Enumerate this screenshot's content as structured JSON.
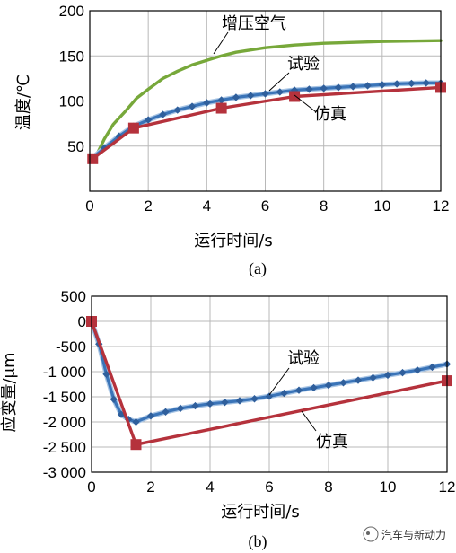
{
  "charts": [
    {
      "type": "line",
      "panel_label": "(a)",
      "xlabel": "运行时间/s",
      "ylabel": "温度/℃",
      "xlim": [
        0,
        12
      ],
      "ylim": [
        0,
        200
      ],
      "xticks": [
        0,
        2,
        4,
        6,
        8,
        10,
        12
      ],
      "xtick_labels": [
        "0",
        "2",
        "4",
        "6",
        "8",
        "10",
        "12"
      ],
      "yticks": [
        50,
        100,
        150,
        200
      ],
      "ytick_labels": [
        "50",
        "100",
        "150",
        "200"
      ],
      "grid": true,
      "annotations": [
        "增压空气",
        "试验",
        "仿真"
      ],
      "series": [
        {
          "name": "增压空气",
          "color": "#77a83a",
          "marker": "none",
          "x": [
            0.2,
            0.5,
            0.8,
            1.2,
            1.6,
            2.0,
            2.5,
            3.0,
            3.5,
            4.0,
            4.5,
            5.0,
            6.0,
            7.0,
            8.0,
            9.0,
            10.0,
            11.0,
            12.0
          ],
          "y": [
            38,
            58,
            74,
            88,
            103,
            113,
            125,
            133,
            140,
            145,
            150,
            154,
            159,
            162,
            164,
            165,
            166,
            166.5,
            167
          ]
        },
        {
          "name": "试验",
          "color": "#3a74b8",
          "marker": "diamond",
          "x": [
            0.1,
            0.5,
            1.0,
            1.5,
            2.0,
            2.5,
            3.0,
            3.5,
            4.0,
            4.5,
            5.0,
            5.5,
            6.0,
            6.5,
            7.0,
            7.5,
            8.0,
            8.5,
            9.0,
            9.5,
            10.0,
            10.5,
            11.0,
            11.5,
            12.0
          ],
          "y": [
            37,
            48,
            61,
            72,
            79,
            85,
            90,
            94,
            98,
            101,
            104,
            106,
            108,
            110,
            112,
            113,
            114,
            115,
            116,
            117,
            118,
            119,
            119.5,
            120,
            120
          ]
        },
        {
          "name": "仿真",
          "color": "#b5323c",
          "marker": "square",
          "x": [
            0.1,
            1.5,
            4.5,
            7.0,
            12.0
          ],
          "y": [
            36,
            70,
            92,
            105,
            115
          ]
        }
      ]
    },
    {
      "type": "line",
      "panel_label": "(b)",
      "xlabel": "运行时间/s",
      "ylabel": "应变量/μm",
      "xlim": [
        0,
        12
      ],
      "ylim": [
        -3000,
        500
      ],
      "xticks": [
        0,
        2,
        4,
        6,
        8,
        10,
        12
      ],
      "xtick_labels": [
        "0",
        "2",
        "4",
        "6",
        "8",
        "10",
        "12"
      ],
      "yticks": [
        500,
        0,
        -500,
        -1000,
        -1500,
        -2000,
        -2500,
        -3000
      ],
      "ytick_labels": [
        "500",
        "0",
        "-500",
        "-1 000",
        "-1 500",
        "-2 000",
        "-2 500",
        "-3 000"
      ],
      "grid": true,
      "annotations": [
        "试验",
        "仿真"
      ],
      "series": [
        {
          "name": "试验",
          "color": "#3a74b8",
          "marker": "diamond",
          "x": [
            0.0,
            0.25,
            0.5,
            0.75,
            1.0,
            1.25,
            1.5,
            2.0,
            2.5,
            3.0,
            3.5,
            4.0,
            4.5,
            5.0,
            5.5,
            6.0,
            6.5,
            7.0,
            7.5,
            8.0,
            8.5,
            9.0,
            9.5,
            10.0,
            10.5,
            11.0,
            11.5,
            12.0
          ],
          "y": [
            0,
            -450,
            -1050,
            -1550,
            -1850,
            -1950,
            -2000,
            -1880,
            -1800,
            -1730,
            -1680,
            -1640,
            -1610,
            -1580,
            -1540,
            -1490,
            -1430,
            -1370,
            -1320,
            -1270,
            -1220,
            -1170,
            -1120,
            -1070,
            -1020,
            -970,
            -910,
            -850
          ]
        },
        {
          "name": "仿真",
          "color": "#b5323c",
          "marker": "square",
          "x": [
            0.0,
            1.5,
            12.0
          ],
          "y": [
            0,
            -2450,
            -1180
          ]
        }
      ]
    }
  ],
  "watermark": {
    "text": "汽车与新动力"
  }
}
